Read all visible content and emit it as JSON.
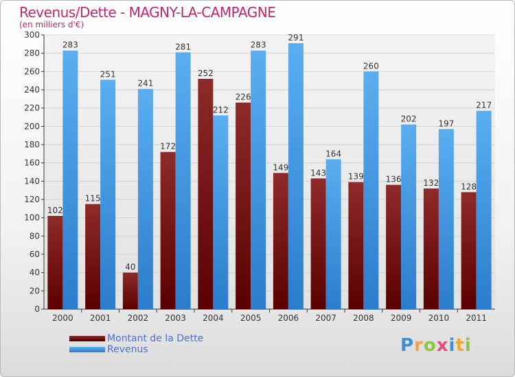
{
  "colors": {
    "dette": "#8b1a1a",
    "revenus": "#3f9ee8",
    "title": "#c0276b",
    "legend_text": "#4d6fd6"
  },
  "chart_data": {
    "type": "bar",
    "title": "Revenus/Dette - MAGNY-LA-CAMPAGNE",
    "subtitle": "(en milliers d'€)",
    "categories": [
      "2000",
      "2001",
      "2002",
      "2003",
      "2004",
      "2005",
      "2006",
      "2007",
      "2008",
      "2009",
      "2010",
      "2011"
    ],
    "series": [
      {
        "name": "Montant de la Dette",
        "values": [
          102,
          115,
          40,
          172,
          252,
          226,
          149,
          143,
          139,
          136,
          132,
          128
        ]
      },
      {
        "name": "Revenus",
        "values": [
          283,
          251,
          241,
          281,
          212,
          283,
          291,
          164,
          260,
          202,
          197,
          217
        ]
      }
    ],
    "ylim": [
      0,
      300
    ],
    "yticks": [
      0,
      20,
      40,
      60,
      80,
      100,
      120,
      140,
      160,
      180,
      200,
      220,
      240,
      260,
      280,
      300
    ],
    "grid": true,
    "legend": "bottom-left"
  },
  "logo": {
    "letters": [
      "P",
      "r",
      "o",
      "x",
      "i",
      "t",
      "i"
    ],
    "colors": [
      "#3a8fd9",
      "#f2a33a",
      "#8cc63f",
      "#e84b7a",
      "#3a8fd9",
      "#f2a33a",
      "#8cc63f"
    ]
  }
}
